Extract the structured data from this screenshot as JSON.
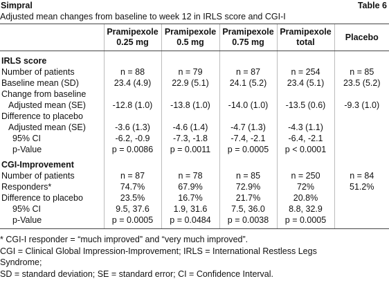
{
  "header": {
    "title": "Simpral",
    "table_label": "Table 6",
    "subtitle": "Adjusted mean changes from baseline to week 12 in IRLS score and CGI-I"
  },
  "table": {
    "columns": [
      [
        "Pramipexole",
        "0.25 mg"
      ],
      [
        "Pramipexole",
        "0.5 mg"
      ],
      [
        "Pramipexole",
        "0.75 mg"
      ],
      [
        "Pramipexole",
        "total"
      ],
      [
        "Placebo"
      ]
    ],
    "sections": [
      {
        "heading": "IRLS score",
        "rows": [
          [
            "Number of patients",
            "n = 88",
            "n = 79",
            "n = 87",
            "n = 254",
            "n = 85"
          ],
          [
            "Baseline mean (SD)",
            "23.4 (4.9)",
            "22.9 (5.1)",
            "24.1 (5.2)",
            "23.4 (5.1)",
            "23.5 (5.2)"
          ],
          [
            "Change from baseline"
          ],
          [
            "Adjusted mean (SE)",
            "-12.8 (1.0)",
            "-13.8 (1.0)",
            "-14.0 (1.0)",
            "-13.5 (0.6)",
            "-9.3 (1.0)"
          ],
          [
            "Difference to placebo"
          ],
          [
            "Adjusted mean (SE)",
            "-3.6 (1.3)",
            "-4.6 (1.4)",
            "-4.7 (1.3)",
            "-4.3 (1.1)"
          ],
          [
            "95% CI",
            "-6.2, -0.9",
            "-7.3, -1.8",
            "-7.4, -2.1",
            "-6.4, -2.1"
          ],
          [
            "p-Value",
            "p = 0.0086",
            "p = 0.0011",
            "p = 0.0005",
            "p < 0.0001"
          ]
        ]
      },
      {
        "heading": "CGI-Improvement",
        "rows": [
          [
            "Number of patients",
            "n = 87",
            "n = 78",
            "n = 85",
            "n = 250",
            "n = 84"
          ],
          [
            "Responders*",
            "74.7%",
            "67.9%",
            "72.9%",
            "72%",
            "51.2%"
          ],
          [
            "Difference to placebo",
            "23.5%",
            "16.7%",
            "21.7%",
            "20.8%"
          ],
          [
            "95% CI",
            "9.5, 37.6",
            "1.9, 31.6",
            "7.5, 36.0",
            "8.8, 32.9"
          ],
          [
            "p-Value",
            "p = 0.0005",
            "p = 0.0484",
            "p = 0.0038",
            "p = 0.0005"
          ]
        ]
      }
    ]
  },
  "footnotes": [
    "* CGI-I responder = “much improved” and “very much improved”.",
    "CGI = Clinical Global Impression-Improvement; IRLS = International Restless Legs",
    "Syndrome;",
    "SD = standard deviation; SE = standard error; CI = Confidence Interval."
  ]
}
